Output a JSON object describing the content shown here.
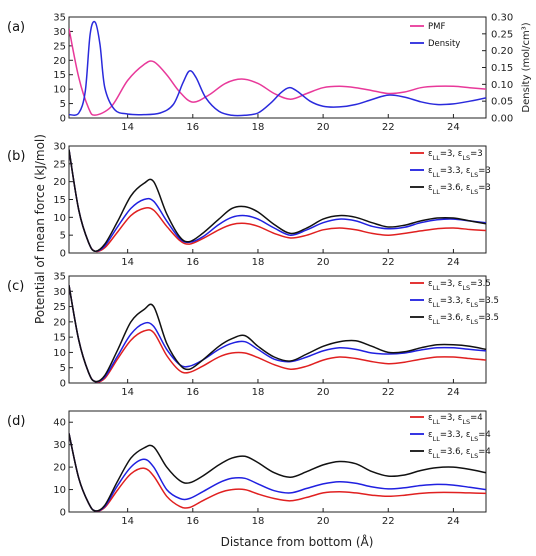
{
  "chart_data": [
    {
      "type": "line",
      "panel_label": "(a)",
      "xlim": [
        12.2,
        25
      ],
      "x_ticks": [
        14,
        16,
        18,
        20,
        22,
        24
      ],
      "ylim": [
        0,
        35
      ],
      "y_ticks": [
        0,
        5,
        10,
        15,
        20,
        25,
        30,
        35
      ],
      "y2lim": [
        0,
        0.3
      ],
      "y2_ticks": [
        "0.00",
        "0.05",
        "0.10",
        "0.15",
        "0.20",
        "0.25",
        "0.30"
      ],
      "y2label": "Density (mol/cm³)",
      "legend_position": "top-right",
      "series": [
        {
          "name": "PMF",
          "axis": "left",
          "color": "#e8399a",
          "x": [
            12.2,
            12.5,
            12.8,
            13.0,
            13.5,
            14.0,
            14.5,
            14.8,
            15.2,
            15.6,
            16.0,
            16.5,
            17.0,
            17.5,
            18.0,
            18.5,
            19.0,
            19.5,
            20.0,
            20.5,
            21.0,
            21.5,
            22.0,
            22.5,
            23.0,
            23.5,
            24.0,
            24.5,
            25.0
          ],
          "y": [
            31,
            14,
            3.5,
            1,
            4,
            13,
            18.5,
            19.5,
            15,
            9,
            5.5,
            8,
            12,
            13.5,
            12,
            8.5,
            6.5,
            8.5,
            10.5,
            11,
            10.5,
            9.5,
            8.5,
            9,
            10.5,
            11,
            11,
            10.5,
            10
          ]
        },
        {
          "name": "Density",
          "axis": "right",
          "color": "#2a2adc",
          "x": [
            12.2,
            12.5,
            12.7,
            12.85,
            13.0,
            13.15,
            13.3,
            13.6,
            14.0,
            14.5,
            15.0,
            15.4,
            15.7,
            15.9,
            16.1,
            16.4,
            16.8,
            17.2,
            17.6,
            18.0,
            18.4,
            18.7,
            18.95,
            19.2,
            19.6,
            20.0,
            20.5,
            21.0,
            21.5,
            22.0,
            22.5,
            23.0,
            23.5,
            24.0,
            24.5,
            25.0
          ],
          "y": [
            0.01,
            0.015,
            0.08,
            0.25,
            0.285,
            0.22,
            0.09,
            0.025,
            0.012,
            0.01,
            0.015,
            0.04,
            0.105,
            0.14,
            0.12,
            0.06,
            0.02,
            0.008,
            0.008,
            0.015,
            0.045,
            0.075,
            0.09,
            0.08,
            0.05,
            0.035,
            0.033,
            0.04,
            0.055,
            0.068,
            0.062,
            0.048,
            0.04,
            0.042,
            0.05,
            0.06
          ]
        }
      ]
    },
    {
      "type": "line",
      "panel_label": "(b)",
      "xlim": [
        12.2,
        25
      ],
      "x_ticks": [
        14,
        16,
        18,
        20,
        22,
        24
      ],
      "ylim": [
        0,
        30
      ],
      "y_ticks": [
        0,
        5,
        10,
        15,
        20,
        25,
        30
      ],
      "legend_position": "top-right",
      "series": [
        {
          "name": "εLL=3, εLS=3",
          "color": "#e02020",
          "x": [
            12.2,
            12.5,
            12.8,
            13.0,
            13.3,
            13.7,
            14.1,
            14.5,
            14.8,
            15.2,
            15.6,
            15.9,
            16.3,
            16.8,
            17.2,
            17.6,
            18.0,
            18.5,
            19.0,
            19.5,
            20.0,
            20.5,
            21.0,
            21.5,
            22.0,
            22.5,
            23.0,
            23.5,
            24.0,
            24.5,
            25.0
          ],
          "y": [
            29,
            12,
            3,
            0.5,
            1.5,
            6,
            10.5,
            12.5,
            12,
            7.5,
            3.5,
            2.5,
            4,
            6.5,
            8,
            8.3,
            7.5,
            5.5,
            4.2,
            5,
            6.5,
            7,
            6.5,
            5.5,
            5,
            5.5,
            6.2,
            6.8,
            7,
            6.6,
            6.3
          ]
        },
        {
          "name": "εLL=3.3, εLS=3",
          "color": "#2020e0",
          "x": [
            12.2,
            12.5,
            12.8,
            13.0,
            13.3,
            13.7,
            14.1,
            14.5,
            14.8,
            15.2,
            15.6,
            15.9,
            16.3,
            16.8,
            17.2,
            17.6,
            18.0,
            18.5,
            19.0,
            19.5,
            20.0,
            20.5,
            21.0,
            21.5,
            22.0,
            22.5,
            23.0,
            23.5,
            24.0,
            24.5,
            25.0
          ],
          "y": [
            29,
            12,
            3,
            0.5,
            2,
            7.5,
            12.5,
            15,
            14.5,
            9,
            4,
            3,
            4.5,
            8,
            10,
            10.5,
            9.5,
            7,
            5,
            6.5,
            8.5,
            9.5,
            9,
            7.5,
            6.8,
            7.2,
            8.5,
            9.3,
            9.5,
            9,
            8.5
          ]
        },
        {
          "name": "εLL=3.6, εLS=3",
          "color": "#111111",
          "x": [
            12.2,
            12.5,
            12.8,
            13.0,
            13.3,
            13.7,
            14.1,
            14.5,
            14.8,
            15.2,
            15.6,
            15.9,
            16.3,
            16.8,
            17.2,
            17.6,
            18.0,
            18.5,
            19.0,
            19.5,
            20.0,
            20.5,
            21.0,
            21.5,
            22.0,
            22.5,
            23.0,
            23.5,
            24.0,
            24.5,
            25.0
          ],
          "y": [
            29,
            12,
            3,
            0.5,
            2.5,
            9,
            16,
            19.5,
            20,
            11,
            4.5,
            3.2,
            5.5,
            9.5,
            12.5,
            13,
            11.5,
            8,
            5.5,
            7,
            9.5,
            10.5,
            10,
            8.5,
            7.3,
            7.8,
            9,
            9.8,
            9.8,
            9,
            8.2
          ]
        }
      ]
    },
    {
      "type": "line",
      "panel_label": "(c)",
      "xlim": [
        12.2,
        25
      ],
      "x_ticks": [
        14,
        16,
        18,
        20,
        22,
        24
      ],
      "ylim": [
        0,
        35
      ],
      "y_ticks": [
        0,
        5,
        10,
        15,
        20,
        25,
        30,
        35
      ],
      "legend_position": "top-right",
      "series": [
        {
          "name": "εLL=3, εLS=3.5",
          "color": "#e02020",
          "x": [
            12.2,
            12.5,
            12.8,
            13.0,
            13.3,
            13.7,
            14.1,
            14.5,
            14.8,
            15.2,
            15.6,
            15.9,
            16.3,
            16.8,
            17.2,
            17.6,
            18.0,
            18.5,
            19.0,
            19.5,
            20.0,
            20.5,
            21.0,
            21.5,
            22.0,
            22.5,
            23.0,
            23.5,
            24.0,
            24.5,
            25.0
          ],
          "y": [
            32,
            14,
            3.5,
            0.5,
            1.5,
            8,
            14,
            17,
            16.5,
            9,
            4,
            3.5,
            5.5,
            8.5,
            9.8,
            9.8,
            8.3,
            6,
            4.5,
            5.5,
            7.5,
            8.5,
            8,
            7,
            6.3,
            6.8,
            7.8,
            8.5,
            8.5,
            8,
            7.5
          ]
        },
        {
          "name": "εLL=3.3, εLS=3.5",
          "color": "#2020e0",
          "x": [
            12.2,
            12.5,
            12.8,
            13.0,
            13.3,
            13.7,
            14.1,
            14.5,
            14.8,
            15.2,
            15.6,
            15.9,
            16.3,
            16.8,
            17.2,
            17.6,
            18.0,
            18.5,
            19.0,
            19.5,
            20.0,
            20.5,
            21.0,
            21.5,
            22.0,
            22.5,
            23.0,
            23.5,
            24.0,
            24.5,
            25.0
          ],
          "y": [
            32,
            14,
            3.5,
            0.5,
            2,
            9,
            16,
            19.5,
            18.5,
            11,
            6,
            5.5,
            7.5,
            11,
            13,
            13.5,
            11,
            7.8,
            7,
            8.5,
            10.5,
            11.5,
            11,
            9.8,
            9.5,
            9.8,
            10.8,
            11.5,
            11.5,
            11,
            10.5
          ]
        },
        {
          "name": "εLL=3.6, εLS=3.5",
          "color": "#111111",
          "x": [
            12.2,
            12.5,
            12.8,
            13.0,
            13.3,
            13.7,
            14.1,
            14.5,
            14.8,
            15.2,
            15.6,
            15.9,
            16.3,
            16.8,
            17.2,
            17.6,
            18.0,
            18.5,
            19.0,
            19.5,
            20.0,
            20.5,
            21.0,
            21.5,
            22.0,
            22.5,
            23.0,
            23.5,
            24.0,
            24.5,
            25.0
          ],
          "y": [
            32,
            14,
            3.5,
            0.5,
            2.5,
            11,
            20,
            24,
            25,
            13,
            6,
            4.5,
            7.5,
            12,
            14.5,
            15.5,
            12,
            8.5,
            7.2,
            9.5,
            12,
            13.5,
            13.8,
            12,
            10,
            10.2,
            11.5,
            12.5,
            12.5,
            12,
            11
          ]
        }
      ]
    },
    {
      "type": "line",
      "panel_label": "(d)",
      "xlim": [
        12.2,
        25
      ],
      "x_ticks": [
        14,
        16,
        18,
        20,
        22,
        24
      ],
      "ylim": [
        0,
        45
      ],
      "y_ticks": [
        0,
        10,
        20,
        30,
        40
      ],
      "legend_position": "top-right",
      "series": [
        {
          "name": "εLL=3, εLS=4",
          "color": "#e02020",
          "x": [
            12.2,
            12.5,
            12.8,
            13.0,
            13.3,
            13.7,
            14.1,
            14.5,
            14.8,
            15.2,
            15.6,
            15.9,
            16.3,
            16.8,
            17.2,
            17.6,
            18.0,
            18.5,
            19.0,
            19.5,
            20.0,
            20.5,
            21.0,
            21.5,
            22.0,
            22.5,
            23.0,
            23.5,
            24.0,
            24.5,
            25.0
          ],
          "y": [
            35,
            15,
            4,
            0.5,
            2,
            10,
            17,
            19.5,
            16,
            7,
            2.5,
            2,
            5,
            8.5,
            10,
            10,
            8,
            6,
            5,
            6.5,
            8.5,
            9,
            8.5,
            7.5,
            7,
            7.5,
            8.3,
            8.7,
            8.7,
            8.5,
            8.3
          ]
        },
        {
          "name": "εLL=3.3, εLS=4",
          "color": "#2020e0",
          "x": [
            12.2,
            12.5,
            12.8,
            13.0,
            13.3,
            13.7,
            14.1,
            14.5,
            14.8,
            15.2,
            15.6,
            15.9,
            16.3,
            16.8,
            17.2,
            17.6,
            18.0,
            18.5,
            19.0,
            19.5,
            20.0,
            20.5,
            21.0,
            21.5,
            22.0,
            22.5,
            23.0,
            23.5,
            24.0,
            24.5,
            25.0
          ],
          "y": [
            35,
            15,
            4,
            0.5,
            2.5,
            12,
            20,
            23.5,
            20,
            10,
            6,
            6,
            9,
            13,
            15,
            15,
            12.5,
            9.5,
            8.5,
            10.5,
            12.5,
            13.5,
            12.8,
            11.2,
            10.3,
            10.8,
            11.8,
            12.3,
            12,
            11,
            10
          ]
        },
        {
          "name": "εLL=3.6, εLS=4",
          "color": "#111111",
          "x": [
            12.2,
            12.5,
            12.8,
            13.0,
            13.3,
            13.7,
            14.1,
            14.5,
            14.8,
            15.2,
            15.6,
            15.9,
            16.3,
            16.8,
            17.2,
            17.6,
            18.0,
            18.5,
            19.0,
            19.5,
            20.0,
            20.5,
            21.0,
            21.5,
            22.0,
            22.5,
            23.0,
            23.5,
            24.0,
            24.5,
            25.0
          ],
          "y": [
            35,
            15,
            4,
            0.5,
            3,
            14,
            24,
            28.5,
            29,
            20,
            14,
            13,
            16,
            21,
            24,
            24.8,
            22,
            17.5,
            15.5,
            18,
            21,
            22.5,
            21.5,
            18,
            16,
            16.5,
            18.5,
            19.8,
            20,
            19,
            17.5
          ]
        }
      ]
    }
  ],
  "ylabel": "Potential of mean force (kJ/mol)",
  "xlabel": "Distance from bottom (Å)"
}
